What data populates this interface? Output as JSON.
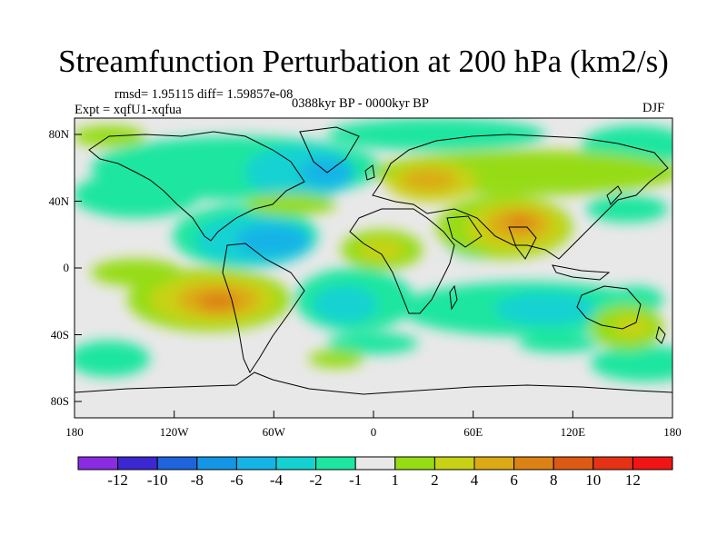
{
  "header": {
    "title": "Streamfunction Perturbation at 200 hPa (km2/s)",
    "stats": "rmsd= 1.95115 diff= 1.59857e-08",
    "experiment": "Expt = xqfU1-xqfua",
    "period": "0388kyr BP - 0000kyr BP",
    "season": "DJF"
  },
  "map": {
    "lon_ticks": [
      "180",
      "120W",
      "60W",
      "0",
      "60E",
      "120E",
      "180"
    ],
    "lat_ticks": [
      "80N",
      "40N",
      "0",
      "40S",
      "80S"
    ],
    "background": "#e8e8e8"
  },
  "colorbar": {
    "labels": [
      "-12",
      "-10",
      "-8",
      "-6",
      "-4",
      "-2",
      "-1",
      "1",
      "2",
      "4",
      "6",
      "8",
      "10",
      "12"
    ],
    "colors": [
      "#8a2be2",
      "#3c28d2",
      "#1e64dc",
      "#1496e6",
      "#14b4e6",
      "#14d2d2",
      "#1ee6a0",
      "#e8e8e8",
      "#96dc14",
      "#c8d214",
      "#dcaa14",
      "#dc8214",
      "#dc5a14",
      "#e63214",
      "#f01414"
    ]
  }
}
